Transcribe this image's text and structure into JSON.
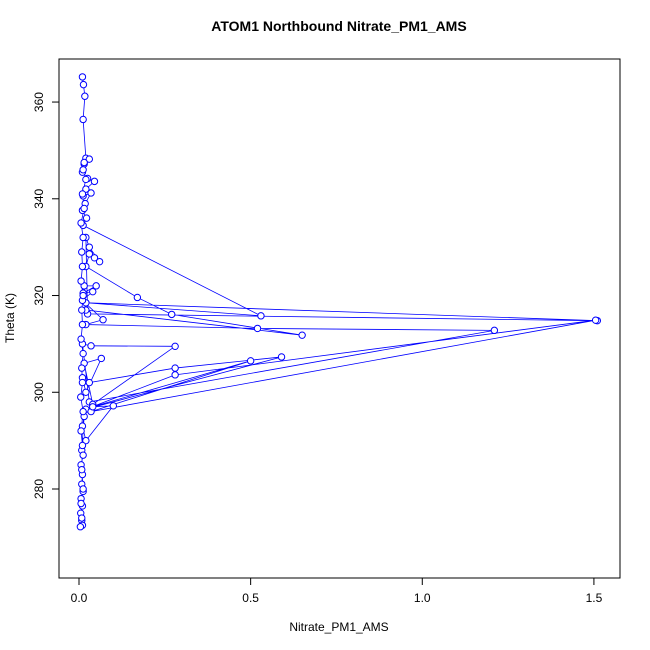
{
  "chart_data": {
    "type": "line",
    "title": "ATOM1 Northbound Nitrate_PM1_AMS",
    "x_label": "Nitrate_PM1_AMS",
    "y_label": "Theta (K)",
    "color": "#0000ff",
    "x": [
      0.01,
      0.013,
      0.017,
      0.012,
      0.02,
      0.03,
      0.015,
      0.01,
      0.025,
      0.045,
      0.02,
      0.012,
      0.035,
      0.018,
      0.01,
      0.022,
      0.012,
      0.53,
      0.02,
      1.51,
      0.025,
      0.02,
      0.03,
      0.06,
      0.045,
      0.03,
      0.02,
      0.17,
      0.27,
      0.65,
      0.02,
      0.015,
      0.05,
      0.012,
      0.04,
      0.01,
      0.07,
      0.02,
      0.52,
      1.21,
      0.03,
      0.01,
      0.035,
      0.28,
      0.04,
      0.015,
      0.065,
      0.02,
      0.01,
      0.03,
      0.28,
      0.59,
      0.02,
      0.28,
      1.505,
      0.035,
      0.5,
      0.04,
      0.1,
      0.02,
      0.01,
      0.015,
      0.008,
      0.012,
      0.006,
      0.01,
      0.008,
      0.012,
      0.006,
      0.01,
      0.005,
      0.008,
      0.01,
      0.004,
      0.008,
      0.006,
      0.012,
      0.008,
      0.01,
      0.006,
      0.012,
      0.005,
      0.01,
      0.008,
      0.012,
      0.006,
      0.01,
      0.008,
      0.012,
      0.006,
      0.01,
      0.008,
      0.012,
      0.006,
      0.015,
      0.01,
      0.02,
      0.012,
      0.015
    ],
    "values": [
      365.2,
      363.6,
      361.2,
      356.4,
      348.4,
      348.2,
      347.2,
      345.5,
      344.2,
      343.6,
      342.0,
      340.6,
      341.2,
      339.0,
      337.6,
      336.0,
      334.5,
      315.8,
      318.5,
      314.8,
      316.2,
      332.0,
      330.0,
      327.0,
      327.8,
      328.6,
      326.0,
      319.6,
      316.1,
      311.8,
      317.0,
      322.0,
      322.0,
      320.5,
      320.8,
      319.0,
      315.0,
      314.0,
      313.2,
      312.8,
      298.0,
      310.0,
      309.6,
      309.5,
      297.5,
      306.0,
      307.0,
      300.0,
      303.0,
      302.0,
      305.0,
      307.3,
      296.5,
      303.6,
      314.9,
      296.0,
      306.5,
      297.0,
      297.2,
      290.0,
      293.0,
      295.0,
      288.0,
      287.0,
      285.0,
      283.0,
      281.0,
      279.5,
      278.0,
      276.5,
      275.0,
      273.5,
      272.5,
      272.2,
      274.0,
      277.0,
      280.0,
      284.0,
      289.0,
      292.0,
      296.0,
      299.0,
      302.0,
      305.0,
      308.0,
      311.0,
      314.0,
      317.0,
      320.0,
      323.0,
      326.0,
      329.0,
      332.0,
      335.0,
      338.0,
      341.0,
      344.0,
      346.0,
      347.5
    ],
    "xlim": [
      -0.0583,
      1.576
    ],
    "ylim": [
      261.6,
      368.9
    ],
    "xticks": [
      {
        "value": 0,
        "label": "0.0"
      },
      {
        "value": 0.5,
        "label": "0.5"
      },
      {
        "value": 1,
        "label": "1.0"
      },
      {
        "value": 1.5,
        "label": "1.5"
      }
    ],
    "yticks": [
      280,
      300,
      320,
      340,
      360
    ]
  }
}
